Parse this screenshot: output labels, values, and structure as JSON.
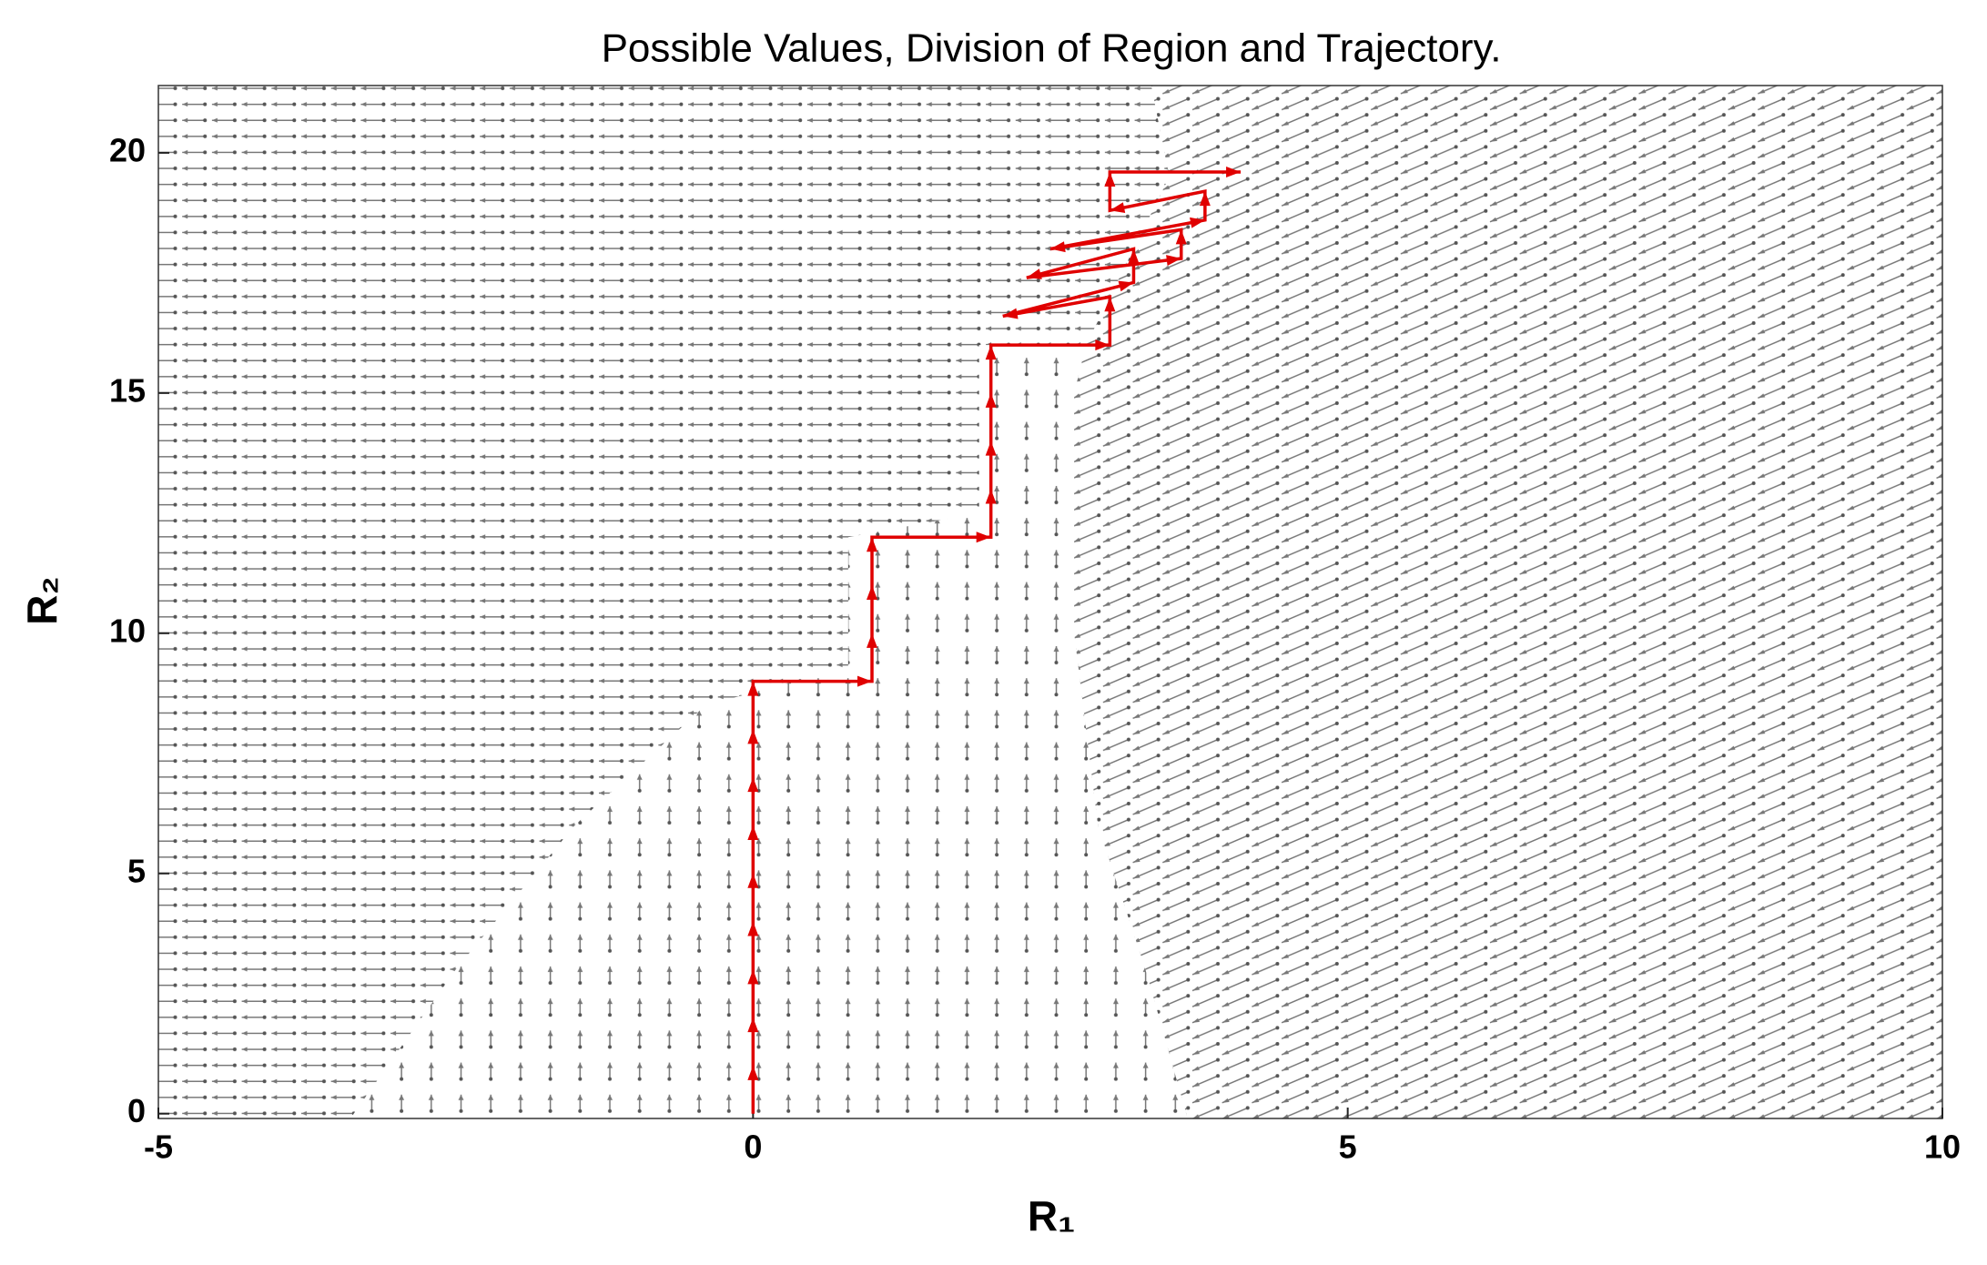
{
  "chart_data": {
    "type": "quiver",
    "title": "Possible Values, Division of Region and Trajectory.",
    "xlabel": "R₁",
    "ylabel": "R₂",
    "xlim": [
      -5,
      10
    ],
    "ylim": [
      -0.1,
      21.4
    ],
    "xticks": [
      -5,
      0,
      5,
      10
    ],
    "yticks": [
      0,
      5,
      10,
      15,
      20
    ],
    "color": "#e00000",
    "x": [
      0,
      0,
      0,
      0,
      0,
      0,
      0,
      0,
      0,
      0,
      1,
      1,
      1,
      1,
      2,
      2,
      2,
      2,
      2,
      3,
      3,
      2.1,
      3.2,
      3.2,
      2.3,
      3.6,
      3.6,
      2.5,
      3.8,
      3.8,
      3,
      3,
      4.1
    ],
    "values": [
      0,
      1,
      2,
      3,
      4,
      5,
      6,
      7,
      8,
      9,
      9,
      10,
      11,
      12,
      12,
      13,
      14,
      15,
      16,
      16,
      17,
      16.6,
      17.3,
      18,
      17.4,
      17.8,
      18.4,
      18,
      18.6,
      19.2,
      18.8,
      19.6,
      19.6
    ]
  }
}
